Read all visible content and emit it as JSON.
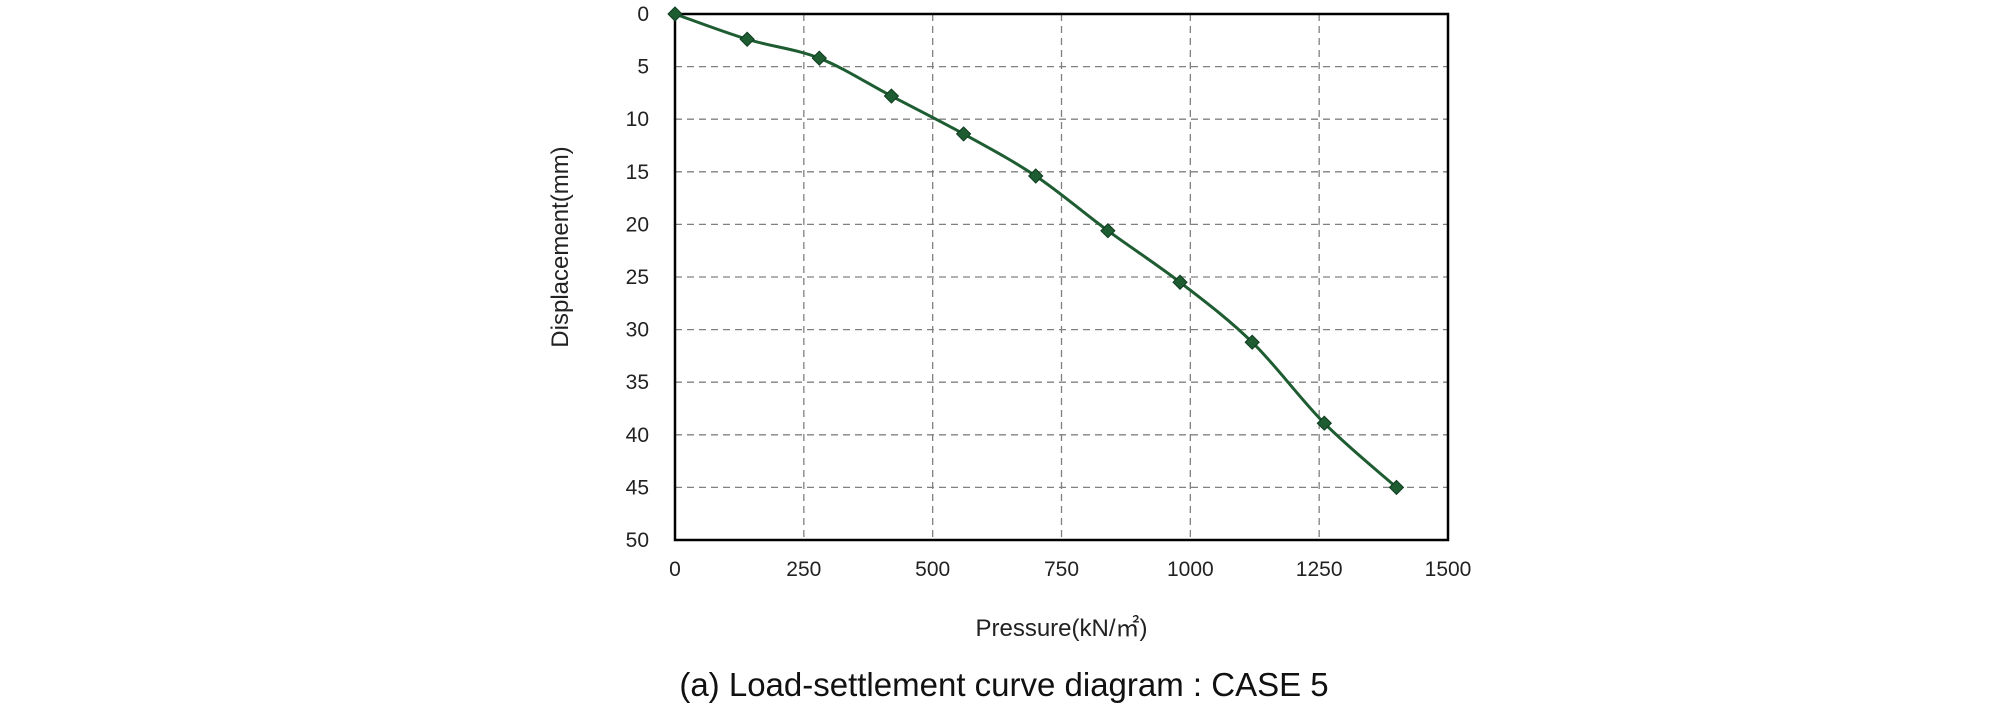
{
  "chart_data": {
    "type": "line",
    "title": "",
    "caption": "(a) Load-settlement curve diagram : CASE 5",
    "xlabel": "Pressure(kN/㎡)",
    "ylabel": "Displacement(mm)",
    "xlim": [
      0,
      1500
    ],
    "ylim": [
      0,
      50
    ],
    "y_inverted": true,
    "x_ticks": [
      "0",
      "250",
      "500",
      "750",
      "1000",
      "1250",
      "1500"
    ],
    "y_ticks": [
      "0",
      "5",
      "10",
      "15",
      "20",
      "25",
      "30",
      "35",
      "40",
      "45",
      "50"
    ],
    "grid": true,
    "legend": "none",
    "series": [
      {
        "x": [
          0,
          140,
          280,
          420,
          560,
          700,
          840,
          980,
          1120,
          1260,
          1400
        ],
        "y": [
          0,
          2.4,
          4.2,
          7.8,
          11.4,
          15.4,
          20.6,
          25.5,
          31.2,
          38.9,
          45.0
        ],
        "color": "#1e5c32",
        "marker": "diamond"
      }
    ]
  }
}
